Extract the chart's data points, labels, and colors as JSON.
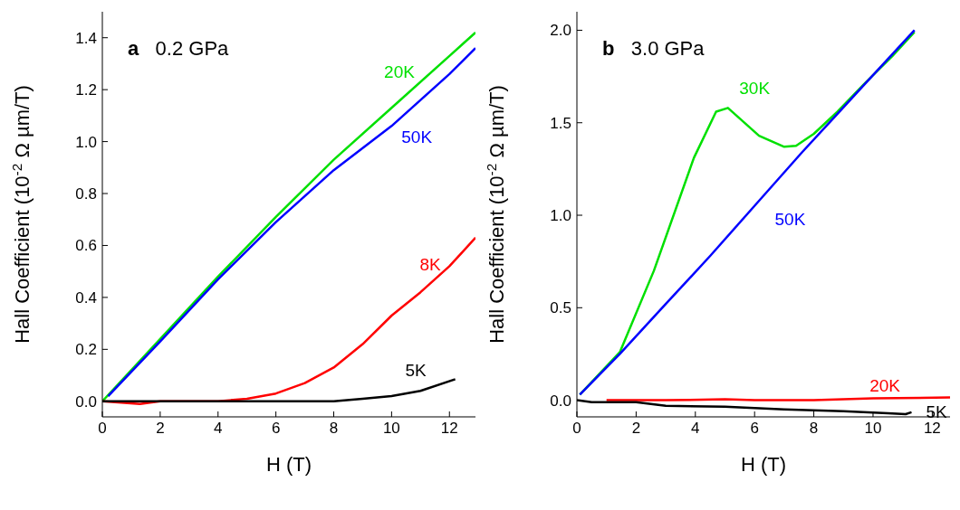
{
  "chart_data": [
    {
      "type": "line",
      "title": "a 0.2 GPa",
      "xlabel": "H (T)",
      "ylabel": "Hall Coefficient (10$^{-2}$ Ω µm/T)",
      "xlim": [
        0,
        12.9
      ],
      "xticks": [
        0,
        2,
        4,
        6,
        8,
        10,
        12
      ],
      "ylim": [
        -0.06,
        1.5
      ],
      "yticks": [
        {
          "value": 0,
          "label": "0.0"
        },
        0.2,
        0.4,
        0.6,
        0.8,
        {
          "value": 1,
          "label": "1.0"
        },
        1.2,
        1.4
      ],
      "marker": "none",
      "line_style": "solid",
      "series": [
        {
          "name": "20K",
          "color": "#00e000",
          "x": [
            0,
            2,
            4,
            6,
            8,
            10,
            12,
            12.9
          ],
          "values": [
            0,
            0.24,
            0.48,
            0.71,
            0.93,
            1.13,
            1.33,
            1.42
          ]
        },
        {
          "name": "50K",
          "color": "#0000ff",
          "x": [
            0.2,
            2,
            4,
            6,
            8,
            10,
            12,
            12.9
          ],
          "values": [
            0.02,
            0.23,
            0.47,
            0.69,
            0.89,
            1.06,
            1.26,
            1.36
          ]
        },
        {
          "name": "8K",
          "color": "#ff0000",
          "x": [
            0,
            1.3,
            2,
            4,
            5,
            6,
            7,
            8,
            9,
            10,
            11,
            12,
            12.9
          ],
          "values": [
            0,
            -0.01,
            0,
            0,
            0.01,
            0.03,
            0.07,
            0.13,
            0.22,
            0.33,
            0.42,
            0.52,
            0.63
          ]
        },
        {
          "name": "5K",
          "color": "#000000",
          "x": [
            0,
            4,
            8,
            9,
            10,
            11,
            12.2
          ],
          "values": [
            0,
            0,
            0,
            0.01,
            0.02,
            0.04,
            0.085
          ]
        }
      ]
    },
    {
      "type": "line",
      "title": "b 3.0 GPa",
      "xlabel": "H (T)",
      "ylabel": "Hall Coefficient (10$^{-2}$ Ω µm/T)",
      "xlim": [
        0,
        12.6
      ],
      "xticks": [
        0,
        2,
        4,
        6,
        8,
        10,
        12
      ],
      "ylim": [
        -0.09,
        2.1
      ],
      "yticks": [
        {
          "value": 0,
          "label": "0.0"
        },
        0.5,
        {
          "value": 1,
          "label": "1.0"
        },
        1.5,
        {
          "value": 2,
          "label": "2.0"
        }
      ],
      "marker": "none",
      "line_style": "solid",
      "series": [
        {
          "name": "30K",
          "color": "#00e000",
          "x": [
            0.1,
            1.45,
            2.6,
            3.95,
            4.7,
            5.1,
            6.15,
            7.0,
            7.4,
            8.0,
            8.8,
            9.7,
            10.65,
            11.4
          ],
          "values": [
            0.03,
            0.26,
            0.7,
            1.31,
            1.56,
            1.58,
            1.43,
            1.37,
            1.375,
            1.44,
            1.56,
            1.71,
            1.86,
            1.99
          ]
        },
        {
          "name": "50K",
          "color": "#0000ff",
          "x": [
            0.1,
            1.45,
            3.0,
            4.5,
            6.05,
            7.6,
            8.87,
            9.9,
            11.4
          ],
          "values": [
            0.03,
            0.25,
            0.52,
            0.78,
            1.06,
            1.34,
            1.56,
            1.74,
            2.0
          ]
        },
        {
          "name": "20K",
          "color": "#ff0000",
          "x": [
            1.0,
            3,
            5,
            6,
            8,
            10,
            12.6
          ],
          "values": [
            0,
            0,
            0.005,
            0,
            0,
            0.01,
            0.015
          ]
        },
        {
          "name": "5K",
          "color": "#000000",
          "x": [
            0,
            0.5,
            2,
            3,
            5,
            7,
            9,
            10.5,
            11.1,
            11.3
          ],
          "values": [
            0,
            -0.01,
            -0.01,
            -0.03,
            -0.035,
            -0.05,
            -0.06,
            -0.07,
            -0.075,
            -0.065
          ]
        }
      ]
    }
  ]
}
